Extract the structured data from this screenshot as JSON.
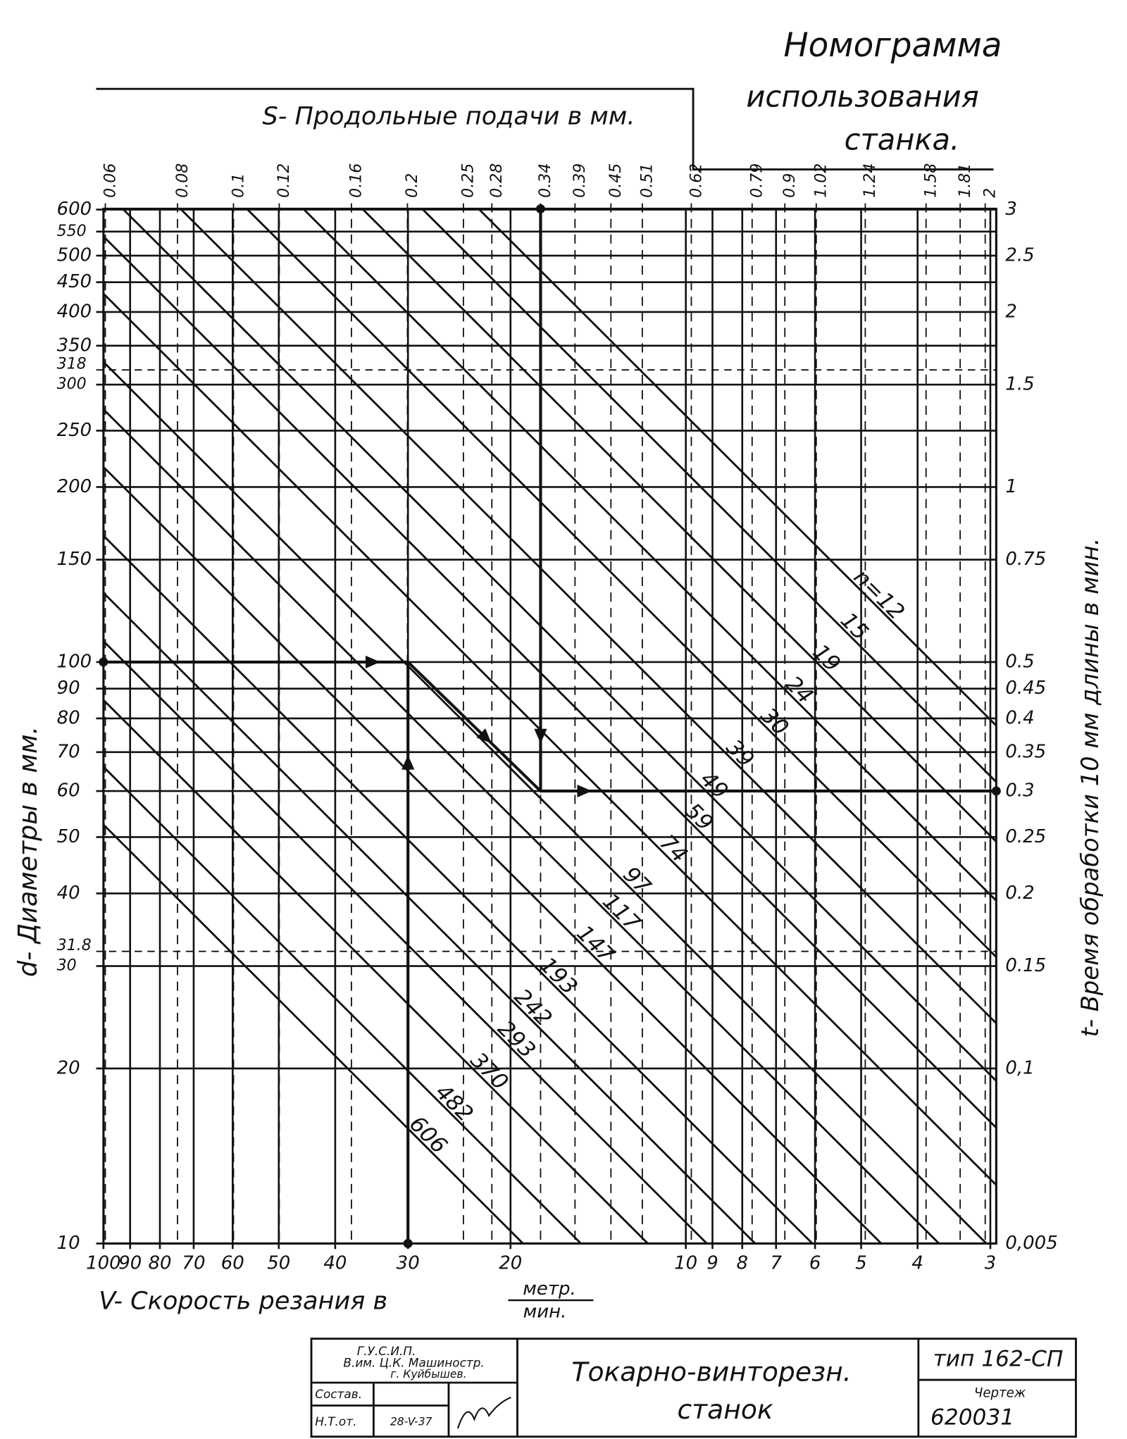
{
  "title": [
    "Номограмма",
    "использования",
    "станка."
  ],
  "s_axis": {
    "title": "S- Продольные подачи  в мм.",
    "ticks": [
      "0.06",
      "0.08",
      "0.1",
      "0.12",
      "0.16",
      "0.2",
      "0.25",
      "0.28",
      "0.34",
      "0.39",
      "0.45",
      "0.51",
      "0.62",
      "0.79",
      "0.9",
      "1.02",
      "1.24",
      "1.58",
      "1.81",
      "2"
    ]
  },
  "d_axis": {
    "title": "d-  Диаметры в мм."
  },
  "t_axis": {
    "title": "t- Время обработки 10 мм длины в мин."
  },
  "rows": [
    {
      "d": "600",
      "t": "3"
    },
    {
      "d": "550"
    },
    {
      "d": "500",
      "t": "2.5"
    },
    {
      "d": "450"
    },
    {
      "d": "400",
      "t": "2"
    },
    {
      "d": "350"
    },
    {
      "d": "318",
      "line": "dashed"
    },
    {
      "d": "300",
      "t": "1.5"
    },
    {
      "d": "250"
    },
    {
      "d": "200",
      "t": "1"
    },
    {
      "d": "150",
      "t": "0.75"
    },
    {
      "d": "100",
      "t": "0.5"
    },
    {
      "d": "90",
      "t": "0.45"
    },
    {
      "d": "80",
      "t": "0.4"
    },
    {
      "d": "70",
      "t": "0.35"
    },
    {
      "d": "60",
      "t": "0.3"
    },
    {
      "d": "50",
      "t": "0.25"
    },
    {
      "d": "40",
      "t": "0.2"
    },
    {
      "d": "31.8",
      "line": "dashed"
    },
    {
      "d": "30",
      "t": "0.15"
    },
    {
      "d": "20",
      "t": "0,1"
    },
    {
      "d": "10",
      "t": "0,005"
    }
  ],
  "v_axis": {
    "title": "V- Скорость резания в",
    "unit_top": "метр.",
    "unit_bottom": "мин.",
    "ticks": [
      "100",
      "90",
      "80",
      "70",
      "60",
      "50",
      "40",
      "30",
      "20",
      "10",
      "9",
      "8",
      "7",
      "6",
      "5",
      "4",
      "3"
    ]
  },
  "speeds": [
    "n=12",
    "15",
    "19",
    "24",
    "30",
    "39",
    "49",
    "59",
    "74",
    "97",
    "117",
    "147",
    "193",
    "242",
    "293",
    "370",
    "482",
    "606"
  ],
  "title_block": {
    "org": [
      "Г.У.С.И.П.",
      "В.им. Ц.К. Машиностр.",
      "г. Куйбышев."
    ],
    "roles": [
      "Состав.",
      "Н.Т.от."
    ],
    "date": "28-V-37",
    "name": [
      "Токарно-винторезн.",
      "станок"
    ],
    "type": "тип 162-СП",
    "drawing_label": "Чертеж",
    "drawing_no": "620031"
  }
}
